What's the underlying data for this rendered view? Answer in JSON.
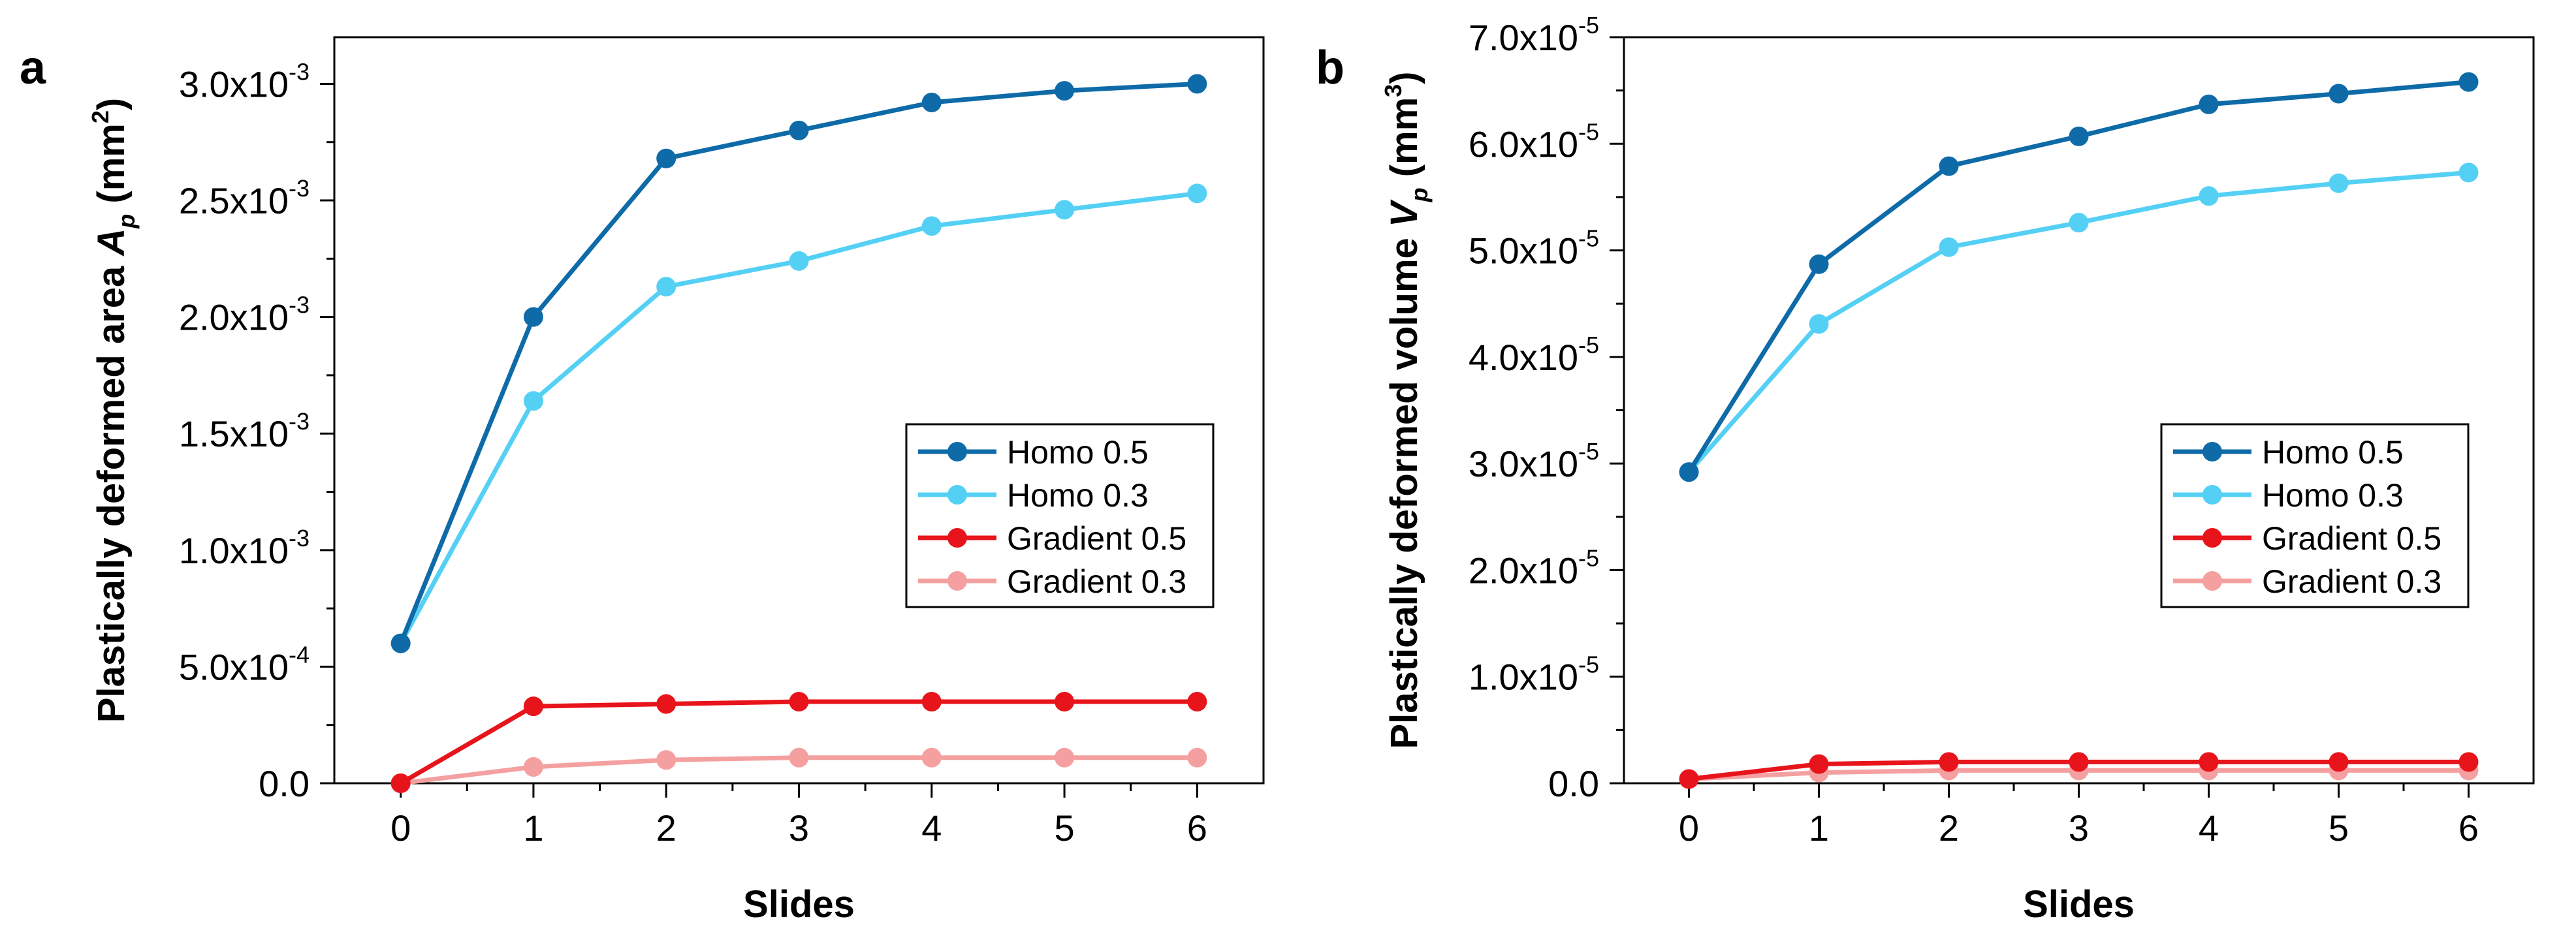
{
  "chart_data": [
    {
      "type": "line",
      "panel_label": "a",
      "xlabel": "Slides",
      "ylabel_main": "Plastically deformed area ",
      "ylabel_var": "A",
      "ylabel_sub": "p",
      "ylabel_unit": " (mm",
      "ylabel_unit_sup": "2",
      "ylabel_close": ")",
      "x": [
        0,
        1,
        2,
        3,
        4,
        5,
        6
      ],
      "xlim": [
        -0.5,
        6.5
      ],
      "ylim": [
        0,
        0.0032
      ],
      "xticks": [
        "0",
        "1",
        "2",
        "3",
        "4",
        "5",
        "6"
      ],
      "yticks": [
        {
          "value": 0,
          "base": "0.0",
          "exp": ""
        },
        {
          "value": 0.0005,
          "base": "5.0x10",
          "exp": "-4"
        },
        {
          "value": 0.001,
          "base": "1.0x10",
          "exp": "-3"
        },
        {
          "value": 0.0015,
          "base": "1.5x10",
          "exp": "-3"
        },
        {
          "value": 0.002,
          "base": "2.0x10",
          "exp": "-3"
        },
        {
          "value": 0.0025,
          "base": "2.5x10",
          "exp": "-3"
        },
        {
          "value": 0.003,
          "base": "3.0x10",
          "exp": "-3"
        }
      ],
      "series": [
        {
          "name": "Homo 0.5",
          "color": "#0e6ba8",
          "values": [
            0.0006,
            0.002,
            0.00268,
            0.0028,
            0.00292,
            0.00297,
            0.003
          ]
        },
        {
          "name": "Homo 0.3",
          "color": "#55d0f5",
          "values": [
            0.0006,
            0.00164,
            0.00213,
            0.00224,
            0.00239,
            0.00246,
            0.00253
          ]
        },
        {
          "name": "Gradient 0.5",
          "color": "#e8141b",
          "values": [
            0.0,
            0.00033,
            0.00034,
            0.00035,
            0.00035,
            0.00035,
            0.00035
          ]
        },
        {
          "name": "Gradient 0.3",
          "color": "#f5a0a0",
          "values": [
            0.0,
            7e-05,
            0.0001,
            0.00011,
            0.00011,
            0.00011,
            0.00011
          ]
        }
      ]
    },
    {
      "type": "line",
      "panel_label": "b",
      "xlabel": "Slides",
      "ylabel_main": "Plastically deformed volume ",
      "ylabel_var": "V",
      "ylabel_sub": "p",
      "ylabel_unit": " (mm",
      "ylabel_unit_sup": "3",
      "ylabel_close": ")",
      "x": [
        0,
        1,
        2,
        3,
        4,
        5,
        6
      ],
      "xlim": [
        -0.5,
        6.5
      ],
      "ylim": [
        0,
        7e-05
      ],
      "xticks": [
        "0",
        "1",
        "2",
        "3",
        "4",
        "5",
        "6"
      ],
      "yticks": [
        {
          "value": 0,
          "base": "0.0",
          "exp": ""
        },
        {
          "value": 1e-05,
          "base": "1.0x10",
          "exp": "-5"
        },
        {
          "value": 2e-05,
          "base": "2.0x10",
          "exp": "-5"
        },
        {
          "value": 3e-05,
          "base": "3.0x10",
          "exp": "-5"
        },
        {
          "value": 4e-05,
          "base": "4.0x10",
          "exp": "-5"
        },
        {
          "value": 5e-05,
          "base": "5.0x10",
          "exp": "-5"
        },
        {
          "value": 6e-05,
          "base": "6.0x10",
          "exp": "-5"
        },
        {
          "value": 7e-05,
          "base": "7.0x10",
          "exp": "-5"
        }
      ],
      "series": [
        {
          "name": "Homo 0.5",
          "color": "#0e6ba8",
          "values": [
            2.92e-05,
            4.87e-05,
            5.79e-05,
            6.07e-05,
            6.37e-05,
            6.47e-05,
            6.58e-05
          ]
        },
        {
          "name": "Homo 0.3",
          "color": "#55d0f5",
          "values": [
            2.92e-05,
            4.31e-05,
            5.03e-05,
            5.26e-05,
            5.51e-05,
            5.63e-05,
            5.73e-05
          ]
        },
        {
          "name": "Gradient 0.5",
          "color": "#e8141b",
          "values": [
            4e-07,
            1.8e-06,
            2e-06,
            2e-06,
            2e-06,
            2e-06,
            2e-06
          ]
        },
        {
          "name": "Gradient 0.3",
          "color": "#f5a0a0",
          "values": [
            4e-07,
            1e-06,
            1.2e-06,
            1.2e-06,
            1.2e-06,
            1.2e-06,
            1.2e-06
          ]
        }
      ]
    }
  ]
}
